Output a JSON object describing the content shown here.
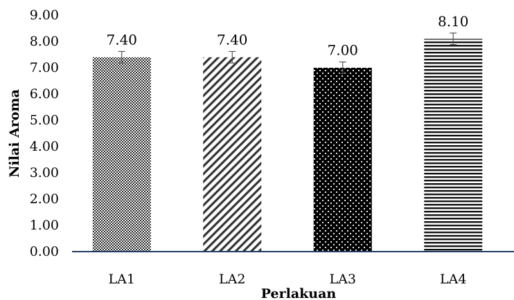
{
  "chart_data": {
    "type": "bar",
    "categories": [
      "LA1",
      "LA2",
      "LA3",
      "LA4"
    ],
    "values": [
      7.4,
      7.4,
      7.0,
      8.1
    ],
    "value_labels": [
      "7.40",
      "7.40",
      "7.00",
      "8.10"
    ],
    "error": [
      0.22,
      0.22,
      0.22,
      0.22
    ],
    "xlabel": "Perlakuan",
    "ylabel": "Nilai Aroma",
    "ylim": [
      0,
      9
    ],
    "yticks": [
      "0.00",
      "1.00",
      "2.00",
      "3.00",
      "4.00",
      "5.00",
      "6.00",
      "7.00",
      "8.00",
      "9.00"
    ],
    "grid": false,
    "legend": "none",
    "axis_color": "#1f3864",
    "bar_patterns": [
      "checker",
      "diagonal",
      "dots",
      "horizontal-lines"
    ]
  }
}
